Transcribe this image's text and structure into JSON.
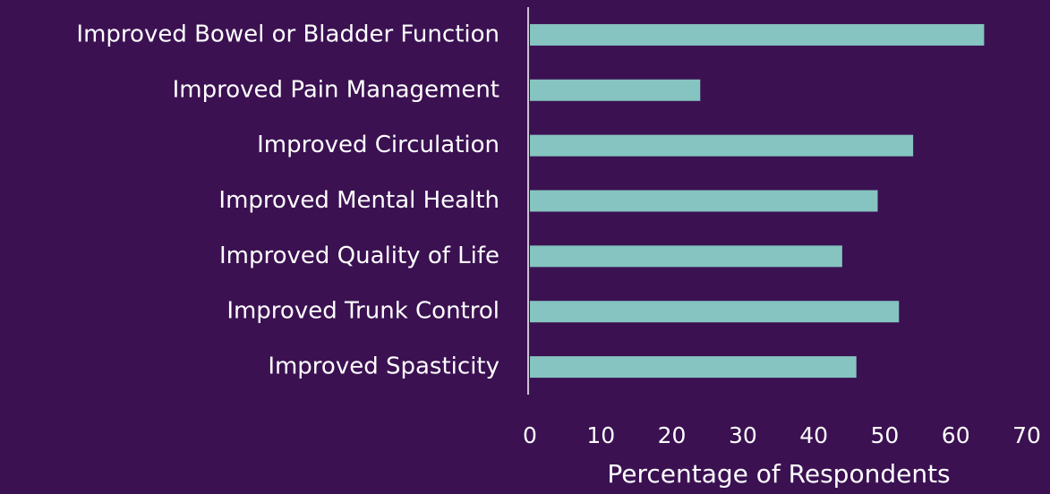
{
  "chart_data": {
    "type": "bar",
    "orientation": "horizontal",
    "categories": [
      "Improved Bowel or Bladder Function",
      "Improved Pain Management",
      "Improved Circulation",
      "Improved Mental Health",
      "Improved Quality of Life",
      "Improved Trunk Control",
      "Improved Spasticity"
    ],
    "values": [
      64,
      24,
      54,
      49,
      44,
      52,
      46
    ],
    "color": "#85c4c0",
    "xlabel": "Percentage of Respondents",
    "xlim": [
      0,
      70
    ],
    "xticks": [
      0,
      10,
      20,
      30,
      40,
      50,
      60,
      70
    ],
    "grid": false
  }
}
